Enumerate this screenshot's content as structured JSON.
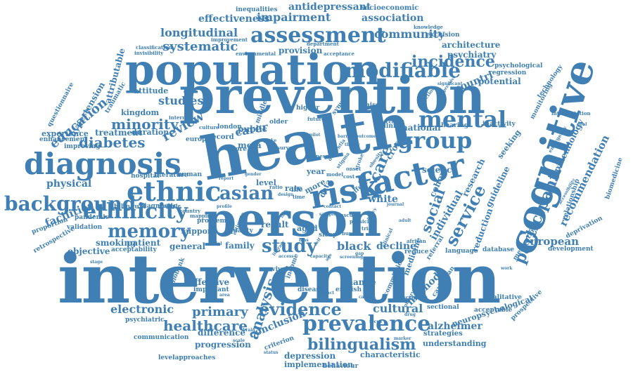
{
  "words": [
    "intervention",
    "person",
    "health",
    "prevention",
    "population",
    "cognitive",
    "diagnosis",
    "factor",
    "risk",
    "ethnic",
    "group",
    "mental",
    "assessment",
    "modifiable",
    "ethnicity",
    "background",
    "memory",
    "prevalence",
    "bilingualism",
    "evidence",
    "study",
    "asian",
    "participant",
    "service",
    "social",
    "incidence",
    "care",
    "healthcare",
    "primary",
    "analysis",
    "cultural",
    "diabetes",
    "minority",
    "education",
    "review",
    "longitudinal",
    "systematic",
    "impairment",
    "effectiveness",
    "antidepressant",
    "association",
    "community",
    "architecture",
    "psychiatry",
    "socioeconomic",
    "inequalities",
    "european",
    "recommendation",
    "epidemiology",
    "research",
    "guideline",
    "individual",
    "cohort",
    "reduction",
    "decline",
    "black",
    "white",
    "carer",
    "electronic",
    "method",
    "alzheimer",
    "neuropsychological",
    "conclusion",
    "progression",
    "difference",
    "depression",
    "implementation",
    "characteristic",
    "understanding",
    "strategies",
    "studies",
    "hypertension",
    "attributable",
    "facilities",
    "physical",
    "patient",
    "general",
    "family",
    "public",
    "record",
    "meta",
    "score",
    "europe",
    "science",
    "national",
    "countri",
    "potential",
    "regression",
    "technology",
    "psychological",
    "biomedicine",
    "relationship",
    "deprivation",
    "development",
    "database",
    "language",
    "referral",
    "medication",
    "qualitative",
    "acceptable",
    "prospective",
    "caribbean",
    "sectional",
    "psychiatric",
    "communication",
    "levelapproaches",
    "behaviour",
    "criterion",
    "change",
    "english",
    "disease",
    "income",
    "survival",
    "effective",
    "important",
    "biobank",
    "objective",
    "smoking",
    "acceptability",
    "validation",
    "retrospective",
    "proportion",
    "pandemic",
    "bilingual",
    "diagnostic",
    "hospital",
    "human",
    "literature",
    "treatment",
    "duration",
    "experience",
    "enhancement",
    "improving",
    "kingdom",
    "attitude",
    "traumatic",
    "questionnaire",
    "classification",
    "invisibility",
    "improvement",
    "environmental",
    "provision",
    "department",
    "acceptance",
    "exclusion",
    "knowledge",
    "seeking",
    "inactivity",
    "interpretation",
    "monitoring",
    "emergency",
    "accessibility",
    "fraction",
    "depressive",
    "significant",
    "hearing",
    "clinic",
    "internal",
    "culture",
    "london",
    "middle",
    "older",
    "future",
    "higher",
    "symptom",
    "liaison",
    "account",
    "cross",
    "level",
    "year",
    "rate",
    "data",
    "more",
    "life",
    "time",
    "result",
    "aged",
    "quality",
    "support",
    "problem",
    "multiple",
    "country",
    "mapping",
    "medicine",
    "clinical",
    "african",
    "reduce",
    "commission",
    "observational",
    "prescription",
    "dementia",
    "chinese",
    "stigma",
    "onset",
    "design",
    "ratio",
    "effect",
    "sleep",
    "contact",
    "estimate",
    "survey",
    "model",
    "cost",
    "obesity",
    "stroke",
    "vascular",
    "physician",
    "burden",
    "trial",
    "policy",
    "link",
    "bias",
    "self",
    "gap",
    "age",
    "sample",
    "screening",
    "capacity",
    "access",
    "literacy",
    "pilot",
    "barrier",
    "outcome",
    "theory",
    "uptake",
    "report",
    "gender",
    "profile",
    "journal",
    "adult",
    "trend",
    "impact",
    "brain",
    "scale",
    "status",
    "marker",
    "drug",
    "focus",
    "cause",
    "area",
    "social",
    "stage",
    "test",
    "work",
    "goal",
    "loss"
  ]
}
